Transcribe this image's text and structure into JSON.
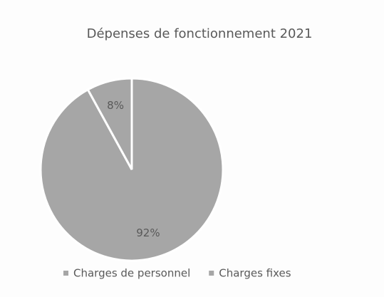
{
  "chart_data": {
    "type": "pie",
    "title": "Dépenses de fonctionnement 2021",
    "categories": [
      "Charges de personnel",
      "Charges fixes"
    ],
    "values": [
      92,
      8
    ],
    "value_labels": [
      "92%",
      "8%"
    ],
    "colors": [
      "#a6a6a6",
      "#a6a6a6"
    ],
    "legend": "bottom"
  }
}
